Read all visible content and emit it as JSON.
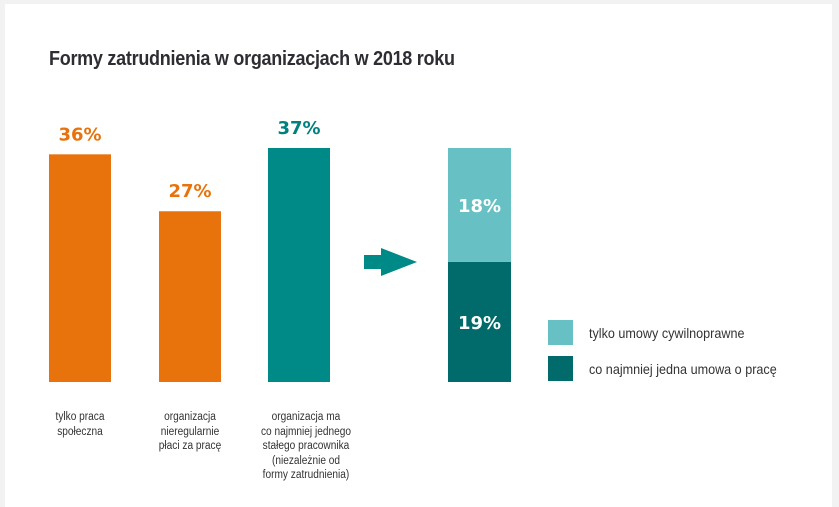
{
  "chart_data": {
    "type": "bar",
    "title": "Formy zatrudnienia w organizacjach w 2018 roku",
    "unit": "%",
    "xlabel": "",
    "ylabel": "",
    "ylim": [
      0,
      37
    ],
    "grid": false,
    "categories": [
      "tylko praca społeczna",
      "organizacja nieregularnie płaci za pracę",
      "organizacja ma co najmniej jednego stałego pracownika (niezależnie od formy zatrudnienia)"
    ],
    "values": [
      36,
      27,
      37
    ],
    "value_labels": [
      "36%",
      "27%",
      "37%"
    ],
    "bar_colors": [
      "#e8730c",
      "#e8730c",
      "#008a87"
    ],
    "label_colors": [
      "#e8730c",
      "#e8730c",
      "#00807e"
    ],
    "category_label_lines": [
      [
        "tylko praca",
        "społeczna"
      ],
      [
        "organizacja",
        "nieregularnie",
        "płaci za pracę"
      ],
      [
        "organizacja   ma",
        "co najmniej jednego",
        "stałego pracownika",
        "(niezależnie od",
        "formy zatrudnienia)"
      ]
    ],
    "breakdown": {
      "of_category": "organizacja ma co najmniej jednego stałego pracownika (niezależnie od formy zatrudnienia)",
      "type": "stacked-bar",
      "series": [
        {
          "name": "tylko umowy cywilnoprawne",
          "value": 18,
          "label": "18%",
          "color": "#66c0c4"
        },
        {
          "name": "co najmniej jedna umowa o pracę",
          "value": 19,
          "label": "19%",
          "color": "#016a6a"
        }
      ]
    },
    "arrow_color": "#008a87",
    "legend": {
      "position": "right",
      "items": [
        {
          "label": "tylko umowy cywilnoprawne",
          "color": "#66c0c4"
        },
        {
          "label": "co najmniej jedna umowa o pracę",
          "color": "#016a6a"
        }
      ]
    }
  }
}
